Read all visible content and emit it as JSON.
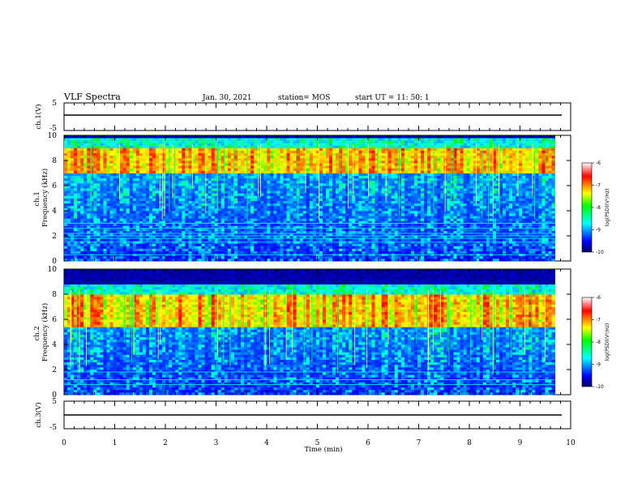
{
  "header": {
    "title": "VLF Spectra",
    "date": "Jan. 30, 2021",
    "station": "station= MOS",
    "start": "start  UT  =   11: 50: 1"
  },
  "colors": {
    "scale": [
      "#000060",
      "#0000ff",
      "#00ffff",
      "#00ff00",
      "#ffff00",
      "#ff0000",
      "#ffffff"
    ]
  },
  "chart_data": [
    {
      "type": "line",
      "ylabel": "ch.1(V)",
      "ylim": [
        -5,
        5
      ],
      "yticklabels": [
        "5",
        "-5"
      ],
      "series": [
        {
          "values": [
            0,
            0
          ]
        }
      ],
      "x": [
        0,
        9.85
      ]
    },
    {
      "type": "heatmap",
      "ylabel": "ch.1\nFrequency (kHz)",
      "ylim": [
        0,
        10
      ],
      "yticklabels": [
        "0",
        "2",
        "4",
        "6",
        "8",
        "10"
      ],
      "xlim": [
        0,
        9.85
      ],
      "band_kHz": [
        7.0,
        9.0
      ],
      "colorbar": {
        "label": "log(PSD)(V²/Hz)",
        "range": [
          -10,
          -6
        ],
        "ticks": [
          "-6",
          "-7",
          "-8",
          "-9",
          "-10"
        ]
      }
    },
    {
      "type": "heatmap",
      "ylabel": "ch.2\nFrequency (kHz)",
      "ylim": [
        0,
        10
      ],
      "yticklabels": [
        "0",
        "2",
        "4",
        "6",
        "8",
        "10"
      ],
      "xlim": [
        0,
        9.85
      ],
      "band_kHz": [
        5.5,
        8.0
      ],
      "colorbar": {
        "label": "log(PSD)(V²/Hz)",
        "range": [
          -10,
          -6
        ],
        "ticks": [
          "-6",
          "-7",
          "-8",
          "-9",
          "-10"
        ]
      }
    },
    {
      "type": "line",
      "ylabel": "ch.3(V)",
      "ylim": [
        -5,
        5
      ],
      "yticklabels": [
        "5",
        "-5"
      ],
      "series": [
        {
          "values": [
            0,
            0
          ]
        }
      ],
      "x": [
        0,
        9.85
      ],
      "xlabel": "Time  (min)",
      "xticklabels": [
        "0",
        "1",
        "2",
        "3",
        "4",
        "5",
        "6",
        "7",
        "8",
        "9",
        "10"
      ],
      "xlim": [
        0,
        10
      ]
    }
  ]
}
